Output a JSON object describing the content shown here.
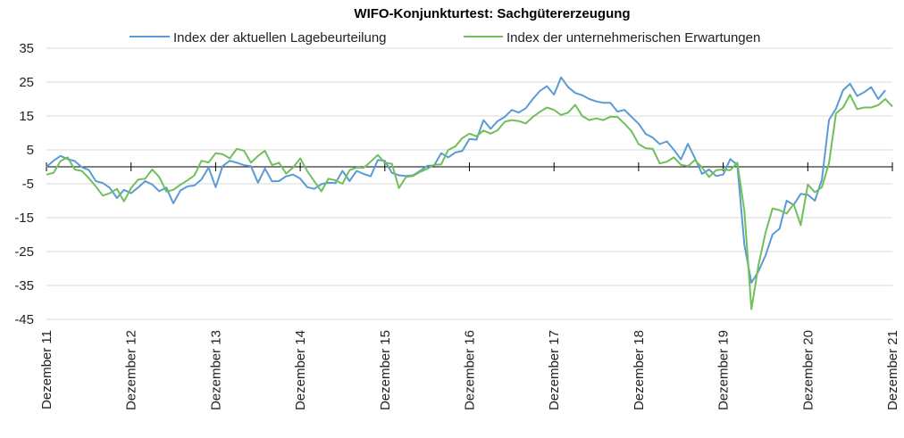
{
  "chart_data": {
    "type": "line",
    "title": "WIFO-Konjunkturtest: Sachgütererzeugung",
    "legend_position": "top-center",
    "grid": true,
    "ylim": [
      -45,
      35
    ],
    "yticks": [
      "35",
      "25",
      "15",
      "5",
      "-5",
      "-15",
      "-25",
      "-35",
      "-45"
    ],
    "ytick_values": [
      35,
      25,
      15,
      5,
      -5,
      -15,
      -25,
      -35,
      -45
    ],
    "zero_axis": 0,
    "x_range_months": [
      0,
      120
    ],
    "xtick_labels": [
      "Dezember 11",
      "Dezember 12",
      "Dezember 13",
      "Dezember 14",
      "Dezember 15",
      "Dezember 16",
      "Dezember 17",
      "Dezember 18",
      "Dezember 19",
      "Dezember 20",
      "Dezember 21"
    ],
    "series": [
      {
        "name": "Index der aktuellen Lagebeurteilung",
        "color": "#5b9bd5",
        "points": [
          [
            0,
            0
          ],
          [
            1,
            1.8
          ],
          [
            2,
            3.2
          ],
          [
            3,
            2.3
          ],
          [
            4,
            1.7
          ],
          [
            5,
            -0.1
          ],
          [
            6,
            -0.9
          ],
          [
            7,
            -4.2
          ],
          [
            8,
            -4.8
          ],
          [
            9,
            -6.2
          ],
          [
            10,
            -9.2
          ],
          [
            11,
            -6.8
          ],
          [
            12,
            -7.8
          ],
          [
            13,
            -6.1
          ],
          [
            14,
            -4.2
          ],
          [
            15,
            -5.2
          ],
          [
            16,
            -7.2
          ],
          [
            17,
            -6.1
          ],
          [
            18,
            -10.8
          ],
          [
            19,
            -7.0
          ],
          [
            20,
            -5.8
          ],
          [
            21,
            -5.5
          ],
          [
            22,
            -3.7
          ],
          [
            23,
            -0.2
          ],
          [
            24,
            -6.0
          ],
          [
            25,
            0.2
          ],
          [
            26,
            1.8
          ],
          [
            27,
            1.2
          ],
          [
            28,
            0.5
          ],
          [
            29,
            0.2
          ],
          [
            30,
            -4.7
          ],
          [
            31,
            -0.5
          ],
          [
            32,
            -4.3
          ],
          [
            33,
            -4.2
          ],
          [
            34,
            -2.8
          ],
          [
            35,
            -2.3
          ],
          [
            36,
            -3.5
          ],
          [
            37,
            -6.0
          ],
          [
            38,
            -6.5
          ],
          [
            39,
            -5.1
          ],
          [
            40,
            -4.7
          ],
          [
            41,
            -4.8
          ],
          [
            42,
            -1.2
          ],
          [
            43,
            -4.2
          ],
          [
            44,
            -1.2
          ],
          [
            45,
            -2.1
          ],
          [
            46,
            -2.8
          ],
          [
            47,
            2.0
          ],
          [
            48,
            1.8
          ],
          [
            49,
            -1.8
          ],
          [
            50,
            -2.5
          ],
          [
            51,
            -2.7
          ],
          [
            52,
            -2.5
          ],
          [
            53,
            -1.2
          ],
          [
            54,
            0.3
          ],
          [
            55,
            0.4
          ],
          [
            56,
            4.0
          ],
          [
            57,
            2.8
          ],
          [
            58,
            4.2
          ],
          [
            59,
            4.7
          ],
          [
            60,
            8.2
          ],
          [
            61,
            8.0
          ],
          [
            62,
            13.8
          ],
          [
            63,
            11.2
          ],
          [
            64,
            13.5
          ],
          [
            65,
            14.7
          ],
          [
            66,
            16.8
          ],
          [
            67,
            16.0
          ],
          [
            68,
            17.3
          ],
          [
            69,
            20.0
          ],
          [
            70,
            22.4
          ],
          [
            71,
            23.8
          ],
          [
            72,
            21.3
          ],
          [
            73,
            26.4
          ],
          [
            74,
            23.5
          ],
          [
            75,
            21.8
          ],
          [
            76,
            21.1
          ],
          [
            77,
            20.0
          ],
          [
            78,
            19.3
          ],
          [
            79,
            18.9
          ],
          [
            80,
            18.9
          ],
          [
            81,
            16.3
          ],
          [
            82,
            16.8
          ],
          [
            83,
            14.7
          ],
          [
            84,
            12.7
          ],
          [
            85,
            9.7
          ],
          [
            86,
            8.6
          ],
          [
            87,
            6.7
          ],
          [
            88,
            7.5
          ],
          [
            89,
            5.0
          ],
          [
            90,
            2.2
          ],
          [
            91,
            6.8
          ],
          [
            92,
            2.5
          ],
          [
            93,
            -2.1
          ],
          [
            94,
            -0.8
          ],
          [
            95,
            -2.7
          ],
          [
            96,
            -2.3
          ],
          [
            97,
            2.3
          ],
          [
            98,
            0.6
          ],
          [
            99,
            -23.0
          ],
          [
            100,
            -34.2
          ],
          [
            101,
            -30.8
          ],
          [
            102,
            -26.2
          ],
          [
            103,
            -20.0
          ],
          [
            104,
            -18.2
          ],
          [
            105,
            -10.0
          ],
          [
            106,
            -11.2
          ],
          [
            107,
            -8.0
          ],
          [
            108,
            -8.2
          ],
          [
            109,
            -10.0
          ],
          [
            110,
            -3.8
          ],
          [
            111,
            13.8
          ],
          [
            112,
            17.2
          ],
          [
            113,
            22.6
          ],
          [
            114,
            24.5
          ],
          [
            115,
            20.9
          ],
          [
            116,
            22.0
          ],
          [
            117,
            23.5
          ],
          [
            118,
            20.0
          ],
          [
            119,
            22.6
          ]
        ]
      },
      {
        "name": "Index der unternehmerischen Erwartungen",
        "color": "#70c05a",
        "points": [
          [
            0,
            -2.3
          ],
          [
            1,
            -1.8
          ],
          [
            2,
            1.7
          ],
          [
            3,
            2.8
          ],
          [
            4,
            -0.8
          ],
          [
            5,
            -1.2
          ],
          [
            6,
            -3.3
          ],
          [
            7,
            -5.8
          ],
          [
            8,
            -8.5
          ],
          [
            9,
            -7.8
          ],
          [
            10,
            -6.5
          ],
          [
            11,
            -10.2
          ],
          [
            12,
            -6.3
          ],
          [
            13,
            -3.8
          ],
          [
            14,
            -3.5
          ],
          [
            15,
            -0.8
          ],
          [
            16,
            -3.0
          ],
          [
            17,
            -7.3
          ],
          [
            18,
            -6.8
          ],
          [
            19,
            -5.3
          ],
          [
            20,
            -4.0
          ],
          [
            21,
            -2.5
          ],
          [
            22,
            1.8
          ],
          [
            23,
            1.3
          ],
          [
            24,
            4.0
          ],
          [
            25,
            3.7
          ],
          [
            26,
            2.5
          ],
          [
            27,
            5.3
          ],
          [
            28,
            4.8
          ],
          [
            29,
            1.2
          ],
          [
            30,
            3.2
          ],
          [
            31,
            4.7
          ],
          [
            32,
            0.5
          ],
          [
            33,
            1.2
          ],
          [
            34,
            -2.0
          ],
          [
            35,
            -0.2
          ],
          [
            36,
            2.5
          ],
          [
            37,
            -1.3
          ],
          [
            38,
            -4.3
          ],
          [
            39,
            -7.2
          ],
          [
            40,
            -3.5
          ],
          [
            41,
            -4.0
          ],
          [
            42,
            -5.0
          ],
          [
            43,
            -1.0
          ],
          [
            44,
            -0.2
          ],
          [
            45,
            -0.3
          ],
          [
            46,
            1.5
          ],
          [
            47,
            3.5
          ],
          [
            48,
            1.2
          ],
          [
            49,
            0.9
          ],
          [
            50,
            -6.3
          ],
          [
            51,
            -3.0
          ],
          [
            52,
            -2.7
          ],
          [
            53,
            -1.5
          ],
          [
            54,
            -0.6
          ],
          [
            55,
            0.6
          ],
          [
            56,
            0.7
          ],
          [
            57,
            5.0
          ],
          [
            58,
            6.0
          ],
          [
            59,
            8.5
          ],
          [
            60,
            9.8
          ],
          [
            61,
            9.0
          ],
          [
            62,
            10.7
          ],
          [
            63,
            9.8
          ],
          [
            64,
            10.8
          ],
          [
            65,
            13.3
          ],
          [
            66,
            13.8
          ],
          [
            67,
            13.5
          ],
          [
            68,
            12.8
          ],
          [
            69,
            14.7
          ],
          [
            70,
            16.2
          ],
          [
            71,
            17.5
          ],
          [
            72,
            16.8
          ],
          [
            73,
            15.3
          ],
          [
            74,
            16.0
          ],
          [
            75,
            18.3
          ],
          [
            76,
            15.0
          ],
          [
            77,
            13.8
          ],
          [
            78,
            14.3
          ],
          [
            79,
            13.8
          ],
          [
            80,
            14.8
          ],
          [
            81,
            14.7
          ],
          [
            82,
            12.7
          ],
          [
            83,
            10.5
          ],
          [
            84,
            6.7
          ],
          [
            85,
            5.5
          ],
          [
            86,
            5.3
          ],
          [
            87,
            1.0
          ],
          [
            88,
            1.5
          ],
          [
            89,
            2.8
          ],
          [
            90,
            0.6
          ],
          [
            91,
            0.2
          ],
          [
            92,
            2.0
          ],
          [
            93,
            -0.2
          ],
          [
            94,
            -3.0
          ],
          [
            95,
            -1.0
          ],
          [
            96,
            -0.8
          ],
          [
            97,
            -1.0
          ],
          [
            98,
            1.2
          ],
          [
            99,
            -13.0
          ],
          [
            100,
            -42.0
          ],
          [
            101,
            -29.0
          ],
          [
            102,
            -19.5
          ],
          [
            103,
            -12.3
          ],
          [
            104,
            -12.8
          ],
          [
            105,
            -13.8
          ],
          [
            106,
            -11.0
          ],
          [
            107,
            -17.2
          ],
          [
            108,
            -5.2
          ],
          [
            109,
            -7.5
          ],
          [
            110,
            -6.0
          ],
          [
            111,
            1.0
          ],
          [
            112,
            15.8
          ],
          [
            113,
            17.5
          ],
          [
            114,
            21.3
          ],
          [
            115,
            17.0
          ],
          [
            116,
            17.5
          ],
          [
            117,
            17.5
          ],
          [
            118,
            18.2
          ],
          [
            119,
            20.0
          ],
          [
            120,
            17.8
          ]
        ]
      }
    ]
  }
}
